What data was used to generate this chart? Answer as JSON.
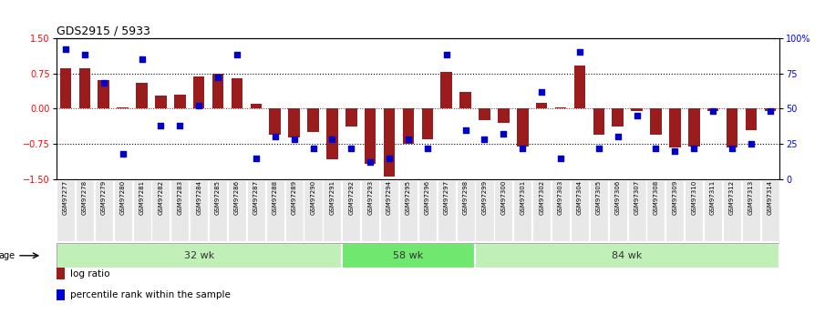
{
  "title": "GDS2915 / 5933",
  "samples": [
    "GSM97277",
    "GSM97278",
    "GSM97279",
    "GSM97280",
    "GSM97281",
    "GSM97282",
    "GSM97283",
    "GSM97284",
    "GSM97285",
    "GSM97286",
    "GSM97287",
    "GSM97288",
    "GSM97289",
    "GSM97290",
    "GSM97291",
    "GSM97292",
    "GSM97293",
    "GSM97294",
    "GSM97295",
    "GSM97296",
    "GSM97297",
    "GSM97298",
    "GSM97299",
    "GSM97300",
    "GSM97301",
    "GSM97302",
    "GSM97303",
    "GSM97304",
    "GSM97305",
    "GSM97306",
    "GSM97307",
    "GSM97308",
    "GSM97309",
    "GSM97310",
    "GSM97311",
    "GSM97312",
    "GSM97313",
    "GSM97314"
  ],
  "log_ratio": [
    0.85,
    0.85,
    0.6,
    0.03,
    0.55,
    0.28,
    0.3,
    0.68,
    0.75,
    0.65,
    0.1,
    -0.55,
    -0.62,
    -0.5,
    -1.08,
    -0.38,
    -1.18,
    -1.45,
    -0.75,
    -0.65,
    0.78,
    0.35,
    -0.25,
    -0.3,
    -0.8,
    0.12,
    0.02,
    0.92,
    -0.55,
    -0.38,
    -0.05,
    -0.55,
    -0.82,
    -0.8,
    -0.05,
    -0.82,
    -0.45,
    -0.05
  ],
  "percentile": [
    92,
    88,
    68,
    18,
    85,
    38,
    38,
    52,
    72,
    88,
    15,
    30,
    28,
    22,
    28,
    22,
    12,
    15,
    28,
    22,
    88,
    35,
    28,
    32,
    22,
    62,
    15,
    90,
    22,
    30,
    45,
    22,
    20,
    22,
    48,
    22,
    25,
    48
  ],
  "groups": [
    {
      "label": "32 wk",
      "start": 0,
      "end": 15,
      "color": "#c0f0b8"
    },
    {
      "label": "58 wk",
      "start": 15,
      "end": 22,
      "color": "#70e870"
    },
    {
      "label": "84 wk",
      "start": 22,
      "end": 38,
      "color": "#c0f0b8"
    }
  ],
  "bar_color": "#9b1c1c",
  "dot_color": "#0000cc",
  "ylim": [
    -1.5,
    1.5
  ],
  "yticks_left": [
    -1.5,
    -0.75,
    0.0,
    0.75,
    1.5
  ],
  "yticks_right_vals": [
    0,
    25,
    50,
    75,
    100
  ],
  "yticks_right_labels": [
    "0",
    "25",
    "50",
    "75",
    "100%"
  ],
  "dotted_lines_black": [
    0.75,
    -0.75
  ],
  "background": "#ffffff",
  "age_label": "age",
  "legend_items": [
    {
      "color": "#9b1c1c",
      "label": "log ratio"
    },
    {
      "color": "#0000cc",
      "label": "percentile rank within the sample"
    }
  ]
}
